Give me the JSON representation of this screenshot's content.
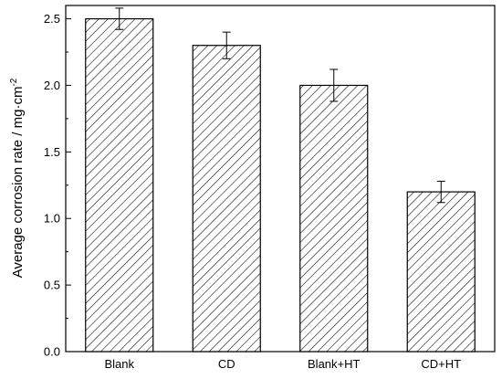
{
  "chart_data": {
    "type": "bar",
    "title": "",
    "xlabel": "",
    "ylabel": "Average corrosion rate / mg·cm",
    "ylabel_superscript": "-2",
    "categories": [
      "Blank",
      "CD",
      "Blank+HT",
      "CD+HT"
    ],
    "values": [
      2.5,
      2.3,
      2.0,
      1.2
    ],
    "errors": [
      0.08,
      0.1,
      0.12,
      0.08
    ],
    "ylim": [
      0,
      2.6
    ],
    "yticks": [
      0.0,
      0.5,
      1.0,
      1.5,
      2.0,
      2.5
    ],
    "ytick_labels": [
      "0.0",
      "0.5",
      "1.0",
      "1.5",
      "2.0",
      "2.5"
    ],
    "bar_fill": "hatched",
    "bar_color": "#000000",
    "grid": false
  }
}
